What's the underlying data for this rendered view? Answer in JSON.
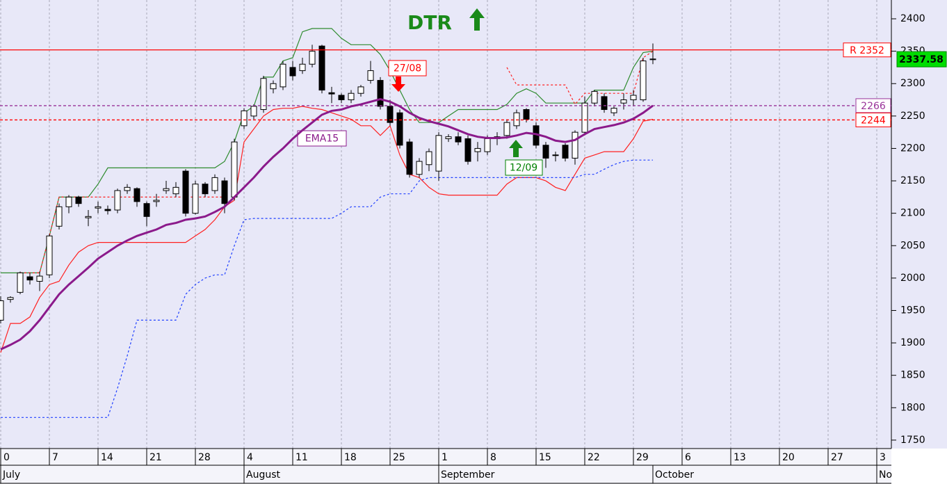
{
  "chart_data": {
    "type": "candlestick",
    "title": "DTR",
    "categories": [
      "0",
      null,
      null,
      null,
      null,
      "7",
      null,
      null,
      null,
      null,
      "14",
      null,
      null,
      null,
      null,
      "21",
      null,
      null,
      null,
      null,
      "28",
      null,
      null,
      null,
      null,
      "4",
      null,
      null,
      null,
      null,
      "11",
      null,
      null,
      null,
      null,
      "18",
      null,
      null,
      null,
      null,
      "25",
      null,
      null,
      null,
      null,
      "1",
      null,
      null,
      null,
      null,
      "8",
      null,
      null,
      null,
      null,
      "15",
      null,
      null,
      null,
      null,
      "22",
      null,
      null,
      null,
      null,
      "29",
      null,
      null,
      null,
      null,
      "6",
      null,
      null,
      null,
      null,
      "13",
      null,
      null,
      null,
      null,
      "20",
      null,
      null,
      null,
      null,
      "27",
      null,
      null,
      null,
      null,
      "3",
      null
    ],
    "months": [
      "July",
      "August",
      "September",
      "October",
      "No"
    ],
    "ohlc": {
      "open": [
        1935,
        1967,
        1978,
        2002,
        1995,
        2005,
        2080,
        2110,
        2125,
        2093,
        2108,
        2106,
        2105,
        2135,
        2138,
        2115,
        2118,
        2135,
        2130,
        2165,
        2100,
        2145,
        2135,
        2150,
        2125,
        2235,
        2250,
        2260,
        2292,
        2295,
        2325,
        2320,
        2330,
        2358,
        2286,
        2282,
        2275,
        2285,
        2305,
        2305,
        2265,
        2255,
        2210,
        2160,
        2175,
        2165,
        2215,
        2218,
        2215,
        2195,
        2195,
        2215,
        2220,
        2235,
        2260,
        2235,
        2205,
        2190,
        2205,
        2185,
        2225,
        2270,
        2280,
        2255,
        2270,
        2275,
        2275,
        2338,
        null,
        null,
        null,
        null,
        null,
        null,
        null,
        null,
        null,
        null,
        null,
        null,
        null,
        null,
        null,
        null,
        null,
        null,
        null,
        null,
        null,
        null,
        null,
        null
      ],
      "high": [
        1972,
        1972,
        2010,
        2008,
        2010,
        2068,
        2115,
        2128,
        2127,
        2105,
        2118,
        2112,
        2138,
        2145,
        2140,
        2118,
        2130,
        2150,
        2148,
        2168,
        2150,
        2148,
        2160,
        2155,
        2215,
        2262,
        2268,
        2312,
        2305,
        2335,
        2335,
        2340,
        2360,
        2360,
        2295,
        2285,
        2290,
        2298,
        2335,
        2310,
        2275,
        2260,
        2215,
        2185,
        2200,
        2225,
        2222,
        2225,
        2220,
        2210,
        2220,
        2225,
        2245,
        2260,
        2262,
        2240,
        2210,
        2195,
        2208,
        2228,
        2280,
        2290,
        2285,
        2265,
        2285,
        2290,
        2340,
        2362,
        null,
        null,
        null,
        null,
        null,
        null,
        null,
        null,
        null,
        null,
        null,
        null,
        null,
        null,
        null,
        null,
        null,
        null,
        null,
        null,
        null,
        null,
        null,
        null
      ],
      "low": [
        1930,
        1962,
        1975,
        1990,
        1980,
        2000,
        2075,
        2100,
        2110,
        2080,
        2100,
        2098,
        2100,
        2130,
        2110,
        2080,
        2110,
        2130,
        2125,
        2095,
        2098,
        2125,
        2130,
        2100,
        2120,
        2230,
        2245,
        2255,
        2285,
        2290,
        2305,
        2315,
        2325,
        2285,
        2270,
        2270,
        2270,
        2280,
        2300,
        2260,
        2235,
        2200,
        2155,
        2155,
        2165,
        2150,
        2210,
        2205,
        2175,
        2180,
        2190,
        2205,
        2215,
        2230,
        2240,
        2200,
        2170,
        2180,
        2180,
        2175,
        2220,
        2265,
        2255,
        2250,
        2260,
        2265,
        2272,
        2330,
        null,
        null,
        null,
        null,
        null,
        null,
        null,
        null,
        null,
        null,
        null,
        null,
        null,
        null,
        null,
        null,
        null,
        null,
        null,
        null,
        null,
        null,
        null,
        null
      ],
      "close": [
        1965,
        1970,
        2008,
        1997,
        2003,
        2065,
        2110,
        2125,
        2115,
        2095,
        2110,
        2104,
        2135,
        2140,
        2118,
        2095,
        2120,
        2138,
        2140,
        2100,
        2145,
        2130,
        2155,
        2115,
        2210,
        2258,
        2265,
        2308,
        2300,
        2330,
        2312,
        2330,
        2350,
        2290,
        2284,
        2275,
        2285,
        2295,
        2320,
        2265,
        2240,
        2205,
        2160,
        2180,
        2195,
        2220,
        2218,
        2210,
        2180,
        2200,
        2215,
        2218,
        2240,
        2255,
        2245,
        2205,
        2185,
        2190,
        2185,
        2225,
        2270,
        2288,
        2260,
        2262,
        2275,
        2282,
        2335,
        2338,
        null,
        null,
        null,
        null,
        null,
        null,
        null,
        null,
        null,
        null,
        null,
        null,
        null,
        null,
        null,
        null,
        null,
        null,
        null,
        null,
        null,
        null,
        null,
        null
      ]
    },
    "series": [
      {
        "name": "EMA15",
        "color": "#8b1a8b",
        "style": "thick",
        "values": [
          1890,
          1897,
          1905,
          1918,
          1935,
          1955,
          1975,
          1990,
          2003,
          2016,
          2030,
          2040,
          2050,
          2058,
          2065,
          2070,
          2075,
          2082,
          2085,
          2090,
          2092,
          2095,
          2102,
          2110,
          2125,
          2140,
          2155,
          2172,
          2187,
          2200,
          2215,
          2228,
          2240,
          2252,
          2258,
          2260,
          2265,
          2268,
          2272,
          2276,
          2272,
          2265,
          2255,
          2247,
          2242,
          2238,
          2234,
          2228,
          2222,
          2218,
          2216,
          2216,
          2217,
          2220,
          2224,
          2222,
          2218,
          2212,
          2210,
          2213,
          2222,
          2230,
          2233,
          2236,
          2240,
          2246,
          2255,
          2266,
          null,
          null,
          null,
          null,
          null,
          null,
          null,
          null,
          null,
          null,
          null,
          null,
          null,
          null,
          null,
          null,
          null,
          null,
          null,
          null,
          null,
          null,
          null,
          null
        ]
      },
      {
        "color": "#2e8b2e",
        "style": "solid",
        "values": [
          2008,
          2008,
          2008,
          2008,
          2008,
          2065,
          2125,
          2125,
          2125,
          2125,
          2145,
          2170,
          2170,
          2170,
          2170,
          2170,
          2170,
          2170,
          2170,
          2170,
          2170,
          2170,
          2170,
          2180,
          2210,
          2255,
          2265,
          2310,
          2310,
          2335,
          2340,
          2380,
          2385,
          2385,
          2385,
          2370,
          2360,
          2360,
          2360,
          2345,
          2320,
          2290,
          2260,
          2240,
          2240,
          2240,
          2250,
          2260,
          2260,
          2260,
          2260,
          2260,
          2268,
          2285,
          2292,
          2285,
          2270,
          2270,
          2270,
          2270,
          2270,
          2290,
          2290,
          2290,
          2290,
          2325,
          2348,
          2350,
          null,
          null,
          null,
          null,
          null,
          null,
          null,
          null,
          null,
          null,
          null,
          null,
          null,
          null,
          null,
          null,
          null,
          null,
          null,
          null,
          null,
          null,
          null,
          null
        ]
      },
      {
        "color": "#ff2020",
        "style": "solid",
        "values": [
          1885,
          1930,
          1930,
          1940,
          1970,
          1990,
          1995,
          2020,
          2040,
          2050,
          2055,
          2055,
          2055,
          2055,
          2055,
          2055,
          2055,
          2055,
          2055,
          2055,
          2065,
          2075,
          2090,
          2110,
          2120,
          2210,
          2230,
          2250,
          2260,
          2262,
          2262,
          2265,
          2262,
          2260,
          2255,
          2250,
          2245,
          2235,
          2235,
          2220,
          2235,
          2190,
          2160,
          2155,
          2140,
          2130,
          2128,
          2128,
          2128,
          2128,
          2128,
          2128,
          2145,
          2155,
          2155,
          2155,
          2150,
          2140,
          2135,
          2160,
          2185,
          2190,
          2195,
          2195,
          2195,
          2215,
          2242,
          2245,
          null,
          null,
          null,
          null,
          null,
          null,
          null,
          null,
          null,
          null,
          null,
          null,
          null,
          null,
          null,
          null,
          null,
          null,
          null,
          null,
          null,
          null,
          null,
          null
        ]
      },
      {
        "color": "#ff2020",
        "style": "dashed",
        "values": [
          null,
          null,
          2008,
          2008,
          2008,
          2065,
          2125,
          2125,
          2125,
          2125,
          2125,
          2125,
          2125,
          2125,
          2125,
          2125,
          2125,
          2125,
          2125,
          2125,
          2125,
          2125,
          2125,
          2125,
          null,
          null,
          null,
          null,
          null,
          null,
          null,
          null,
          null,
          null,
          null,
          null,
          null,
          null,
          null,
          null,
          null,
          null,
          null,
          null,
          null,
          null,
          null,
          null,
          null,
          null,
          null,
          null,
          2325,
          2298,
          2298,
          2298,
          2298,
          2298,
          2298,
          2268,
          2285,
          2285,
          2285,
          2285,
          2285,
          2285,
          2340,
          2350,
          null,
          null,
          null,
          null,
          null,
          null,
          null,
          null,
          null,
          null,
          null,
          null,
          null,
          null,
          null,
          null,
          null,
          null,
          null,
          null,
          null,
          null,
          null,
          null
        ]
      },
      {
        "color": "#2040ff",
        "style": "dashed",
        "values": [
          1785,
          1785,
          1785,
          1785,
          1785,
          1785,
          1785,
          1785,
          1785,
          1785,
          1785,
          1785,
          1830,
          1880,
          1935,
          1935,
          1935,
          1935,
          1935,
          1975,
          1990,
          2000,
          2005,
          2005,
          2050,
          2090,
          2092,
          2092,
          2092,
          2092,
          2092,
          2092,
          2092,
          2092,
          2092,
          2100,
          2110,
          2110,
          2110,
          2125,
          2130,
          2130,
          2130,
          2150,
          2155,
          2155,
          2155,
          2155,
          2155,
          2155,
          2155,
          2155,
          2155,
          2155,
          2155,
          2155,
          2155,
          2155,
          2155,
          2155,
          2160,
          2160,
          2168,
          2175,
          2180,
          2182,
          2182,
          2182,
          null,
          null,
          null,
          null,
          null,
          null,
          null,
          null,
          null,
          null,
          null,
          null,
          null,
          null,
          null,
          null,
          null,
          null,
          null,
          null,
          null,
          null,
          null,
          null
        ]
      }
    ],
    "levels": [
      {
        "value": 2352,
        "label": "R 2352",
        "color": "#ff0000",
        "style": "solid"
      },
      {
        "value": 2266,
        "label": "2266",
        "color": "#993399",
        "style": "dashed"
      },
      {
        "value": 2244,
        "label": "2244",
        "color": "#ff0000",
        "style": "dashed"
      }
    ],
    "last_price": 2337.58,
    "annotations": [
      {
        "text": "27/08",
        "color": "#ff0000"
      },
      {
        "text": "12/09",
        "color": "#008000"
      }
    ],
    "ylim": [
      1737,
      2429
    ],
    "yticks": [
      1750,
      1800,
      1850,
      1900,
      1950,
      2000,
      2050,
      2100,
      2150,
      2200,
      2250,
      2300,
      2350,
      2400
    ]
  }
}
